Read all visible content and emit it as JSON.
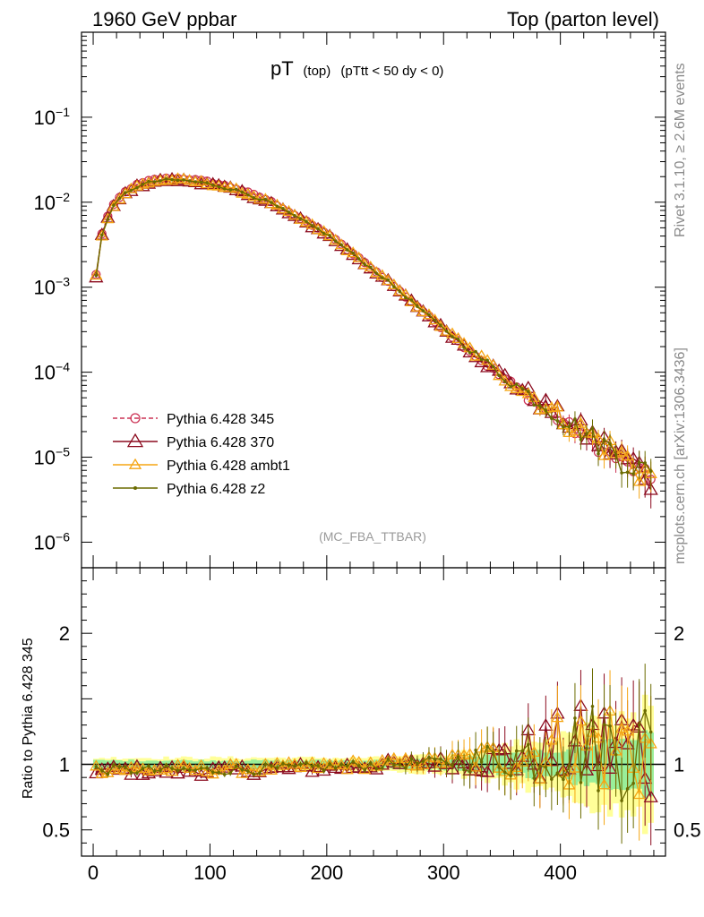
{
  "header": {
    "left": "1960 GeV ppbar",
    "right": "Top (parton level)"
  },
  "side": {
    "rivet": "Rivet 3.1.10, ≥ 2.6M events",
    "mcplots": "mcplots.cern.ch [arXiv:1306.3436]"
  },
  "chart_data": [
    {
      "type": "line",
      "panel": "main",
      "title_main": "pT",
      "title_sub1": "(top)",
      "title_sub2": "(pTtt < 50 dy < 0)",
      "watermark": "(MC_FBA_TTBAR)",
      "yscale": "log",
      "ylim": [
        5e-07,
        1
      ],
      "xlim": [
        -10,
        490
      ],
      "ytick_labels": [
        {
          "base": "10",
          "exp": "−1",
          "value": 0.1
        },
        {
          "base": "10",
          "exp": "−2",
          "value": 0.01
        },
        {
          "base": "10",
          "exp": "−3",
          "value": 0.001
        },
        {
          "base": "10",
          "exp": "−4",
          "value": 0.0001
        },
        {
          "base": "10",
          "exp": "−5",
          "value": 1e-05
        },
        {
          "base": "10",
          "exp": "−6",
          "value": 1e-06
        }
      ],
      "legend_position": "bottom-left",
      "reference_curve": {
        "description": "Pythia 6.428 345 reference spectrum, linear bins of width 5 from x=2.5 to 477.5",
        "x": [
          2.5,
          7.5,
          12.5,
          17.5,
          25,
          35,
          50,
          60,
          70,
          80,
          100,
          125,
          150,
          200,
          250,
          300,
          350,
          400,
          450,
          477.5
        ],
        "y": [
          0.0014,
          0.0043,
          0.0068,
          0.0092,
          0.0125,
          0.0155,
          0.0182,
          0.0189,
          0.0191,
          0.0188,
          0.0172,
          0.0141,
          0.0105,
          0.0043,
          0.00125,
          0.00032,
          8.8e-05,
          2.7e-05,
          9.5e-06,
          5.5e-06
        ]
      },
      "series": [
        {
          "name": "Pythia 6.428 345",
          "color": "#cc3355",
          "marker": "open-circle",
          "dashed": true,
          "factor": 1.0
        },
        {
          "name": "Pythia 6.428 370",
          "color": "#8b0a1e",
          "marker": "open-triangle",
          "dashed": false,
          "factor": 0.96
        },
        {
          "name": "Pythia 6.428 ambt1",
          "color": "#f5a614",
          "marker": "open-triangle",
          "dashed": false,
          "factor": 0.97
        },
        {
          "name": "Pythia 6.428 z2",
          "color": "#6b6b00",
          "marker": "dot",
          "dashed": false,
          "factor": 0.965
        }
      ]
    },
    {
      "type": "line",
      "panel": "ratio",
      "ylabel": "Ratio to Pythia 6.428 345",
      "ylim": [
        0.3,
        2.5
      ],
      "xlim": [
        -10,
        490
      ],
      "ytick_labels": [
        {
          "label": "2",
          "value": 2
        },
        {
          "label": "1",
          "value": 1
        },
        {
          "label": "0.5",
          "value": 0.5
        }
      ],
      "xtick_labels": [
        {
          "label": "0",
          "value": 0
        },
        {
          "label": "100",
          "value": 100
        },
        {
          "label": "200",
          "value": 200
        },
        {
          "label": "300",
          "value": 300
        },
        {
          "label": "400",
          "value": 400
        }
      ],
      "reference_line": 1.0,
      "bands": [
        {
          "name": "yellow",
          "color": "#ffff99",
          "halfwidth_x": [
            0,
            250,
            300,
            350,
            400,
            450,
            480
          ],
          "halfwidth": [
            0.05,
            0.05,
            0.07,
            0.14,
            0.22,
            0.38,
            0.45
          ]
        },
        {
          "name": "green",
          "color": "#99ee99",
          "halfwidth_x": [
            0,
            250,
            300,
            350,
            400,
            450,
            480
          ],
          "halfwidth": [
            0.03,
            0.03,
            0.04,
            0.07,
            0.11,
            0.2,
            0.22
          ]
        }
      ],
      "ratio_trend": {
        "x": [
          2.5,
          50,
          100,
          150,
          200,
          250,
          300,
          350,
          400,
          450,
          477.5
        ],
        "ratio": [
          0.96,
          0.955,
          0.955,
          0.965,
          0.98,
          1.0,
          1.02,
          1.05,
          1.12,
          1.15,
          1.1
        ]
      }
    }
  ]
}
